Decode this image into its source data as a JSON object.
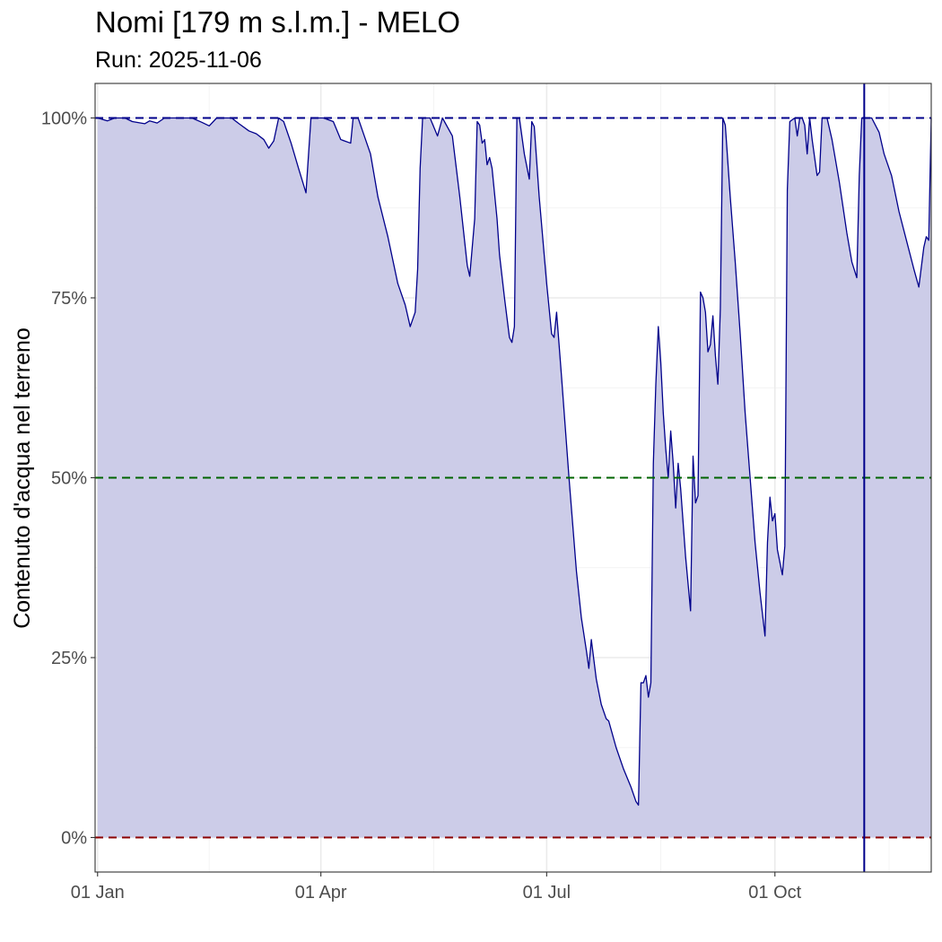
{
  "chart_data": {
    "type": "area",
    "title": "Nomi [179 m s.l.m.] - MELO",
    "subtitle": "Run: 2025-11-06",
    "xlabel": "",
    "ylabel": "Contenuto d'acqua nel terreno",
    "x_ticks": [
      {
        "date": "2025-01-01",
        "label": "01 Jan"
      },
      {
        "date": "2025-04-01",
        "label": "01 Apr"
      },
      {
        "date": "2025-07-01",
        "label": "01 Jul"
      },
      {
        "date": "2025-10-01",
        "label": "01 Oct"
      }
    ],
    "y_ticks": [
      {
        "value": 0,
        "label": "0%"
      },
      {
        "value": 25,
        "label": "25%"
      },
      {
        "value": 50,
        "label": "50%"
      },
      {
        "value": 75,
        "label": "75%"
      },
      {
        "value": 100,
        "label": "100%"
      }
    ],
    "xlim": [
      "2024-12-31",
      "2025-12-03"
    ],
    "ylim": [
      -4.8,
      104.8
    ],
    "grid": true,
    "reference_lines": [
      {
        "value": 100,
        "color": "#00008b",
        "style": "dashed"
      },
      {
        "value": 50,
        "color": "#006400",
        "style": "dashed"
      },
      {
        "value": 0,
        "color": "#8b0000",
        "style": "dashed"
      }
    ],
    "run_date": "2025-11-06",
    "colors": {
      "line": "#00008b",
      "fill": "#cccce8",
      "run_line": "#00008b",
      "grid_major": "#ebebeb",
      "grid_minor": "#f4f4f4",
      "axis_text": "#4d4d4d"
    },
    "series": [
      {
        "points": [
          [
            "2025-01-01",
            100
          ],
          [
            "2025-01-05",
            99.6
          ],
          [
            "2025-01-08",
            100
          ],
          [
            "2025-01-12",
            100
          ],
          [
            "2025-01-15",
            99.5
          ],
          [
            "2025-01-20",
            99.2
          ],
          [
            "2025-01-22",
            99.6
          ],
          [
            "2025-01-25",
            99.3
          ],
          [
            "2025-01-28",
            100
          ],
          [
            "2025-02-02",
            100
          ],
          [
            "2025-02-08",
            100
          ],
          [
            "2025-02-12",
            99.4
          ],
          [
            "2025-02-15",
            98.9
          ],
          [
            "2025-02-18",
            100
          ],
          [
            "2025-02-24",
            100
          ],
          [
            "2025-02-27",
            99.2
          ],
          [
            "2025-03-03",
            98.2
          ],
          [
            "2025-03-06",
            97.8
          ],
          [
            "2025-03-09",
            97
          ],
          [
            "2025-03-11",
            95.8
          ],
          [
            "2025-03-13",
            96.8
          ],
          [
            "2025-03-15",
            100
          ],
          [
            "2025-03-17",
            99.5
          ],
          [
            "2025-03-20",
            96.5
          ],
          [
            "2025-03-23",
            93
          ],
          [
            "2025-03-26",
            89.6
          ],
          [
            "2025-03-28",
            100
          ],
          [
            "2025-04-02",
            100
          ],
          [
            "2025-04-06",
            99.5
          ],
          [
            "2025-04-09",
            97
          ],
          [
            "2025-04-13",
            96.5
          ],
          [
            "2025-04-14",
            100
          ],
          [
            "2025-04-16",
            100
          ],
          [
            "2025-04-18",
            98
          ],
          [
            "2025-04-21",
            95
          ],
          [
            "2025-04-24",
            89
          ],
          [
            "2025-04-28",
            83.5
          ],
          [
            "2025-05-02",
            77
          ],
          [
            "2025-05-05",
            74
          ],
          [
            "2025-05-07",
            71
          ],
          [
            "2025-05-09",
            73
          ],
          [
            "2025-05-10",
            79
          ],
          [
            "2025-05-11",
            93
          ],
          [
            "2025-05-12",
            100
          ],
          [
            "2025-05-15",
            100
          ],
          [
            "2025-05-18",
            97.5
          ],
          [
            "2025-05-20",
            100
          ],
          [
            "2025-05-24",
            97.5
          ],
          [
            "2025-05-27",
            89
          ],
          [
            "2025-05-30",
            79.5
          ],
          [
            "2025-05-31",
            78
          ],
          [
            "2025-06-02",
            86
          ],
          [
            "2025-06-03",
            99.5
          ],
          [
            "2025-06-04",
            99
          ],
          [
            "2025-06-05",
            96.5
          ],
          [
            "2025-06-06",
            97
          ],
          [
            "2025-06-07",
            93.5
          ],
          [
            "2025-06-08",
            94.5
          ],
          [
            "2025-06-09",
            93
          ],
          [
            "2025-06-11",
            86
          ],
          [
            "2025-06-12",
            81
          ],
          [
            "2025-06-14",
            75
          ],
          [
            "2025-06-16",
            69.5
          ],
          [
            "2025-06-17",
            68.8
          ],
          [
            "2025-06-18",
            71
          ],
          [
            "2025-06-19",
            100
          ],
          [
            "2025-06-20",
            100
          ],
          [
            "2025-06-22",
            95
          ],
          [
            "2025-06-24",
            91.5
          ],
          [
            "2025-06-25",
            99.5
          ],
          [
            "2025-06-26",
            98.8
          ],
          [
            "2025-06-28",
            89
          ],
          [
            "2025-07-01",
            77
          ],
          [
            "2025-07-03",
            70
          ],
          [
            "2025-07-04",
            69.5
          ],
          [
            "2025-07-05",
            73
          ],
          [
            "2025-07-07",
            64
          ],
          [
            "2025-07-10",
            50
          ],
          [
            "2025-07-13",
            37
          ],
          [
            "2025-07-15",
            30.5
          ],
          [
            "2025-07-17",
            26
          ],
          [
            "2025-07-18",
            23.5
          ],
          [
            "2025-07-19",
            27.5
          ],
          [
            "2025-07-21",
            22
          ],
          [
            "2025-07-23",
            18.5
          ],
          [
            "2025-07-25",
            16.5
          ],
          [
            "2025-07-26",
            16.2
          ],
          [
            "2025-07-29",
            12.5
          ],
          [
            "2025-08-01",
            9.5
          ],
          [
            "2025-08-04",
            7
          ],
          [
            "2025-08-06",
            5
          ],
          [
            "2025-08-07",
            4.5
          ],
          [
            "2025-08-08",
            21.5
          ],
          [
            "2025-08-09",
            21.5
          ],
          [
            "2025-08-10",
            22.5
          ],
          [
            "2025-08-11",
            19.5
          ],
          [
            "2025-08-12",
            21.5
          ],
          [
            "2025-08-13",
            52
          ],
          [
            "2025-08-14",
            63
          ],
          [
            "2025-08-15",
            71
          ],
          [
            "2025-08-16",
            66
          ],
          [
            "2025-08-17",
            59
          ],
          [
            "2025-08-18",
            54
          ],
          [
            "2025-08-19",
            50
          ],
          [
            "2025-08-20",
            56.5
          ],
          [
            "2025-08-21",
            52
          ],
          [
            "2025-08-22",
            45.8
          ],
          [
            "2025-08-23",
            52
          ],
          [
            "2025-08-24",
            48.5
          ],
          [
            "2025-08-26",
            39
          ],
          [
            "2025-08-28",
            31.5
          ],
          [
            "2025-08-29",
            53
          ],
          [
            "2025-08-30",
            46.5
          ],
          [
            "2025-08-31",
            47.5
          ],
          [
            "2025-09-01",
            75.8
          ],
          [
            "2025-09-02",
            75
          ],
          [
            "2025-09-03",
            73
          ],
          [
            "2025-09-04",
            67.5
          ],
          [
            "2025-09-05",
            68.5
          ],
          [
            "2025-09-06",
            72.5
          ],
          [
            "2025-09-07",
            67
          ],
          [
            "2025-09-08",
            63
          ],
          [
            "2025-09-09",
            73.5
          ],
          [
            "2025-09-10",
            100
          ],
          [
            "2025-09-11",
            99
          ],
          [
            "2025-09-13",
            89
          ],
          [
            "2025-09-15",
            80
          ],
          [
            "2025-09-17",
            70
          ],
          [
            "2025-09-19",
            59
          ],
          [
            "2025-09-21",
            50
          ],
          [
            "2025-09-23",
            41
          ],
          [
            "2025-09-25",
            34
          ],
          [
            "2025-09-27",
            28
          ],
          [
            "2025-09-28",
            41
          ],
          [
            "2025-09-29",
            47.3
          ],
          [
            "2025-09-30",
            44
          ],
          [
            "2025-10-01",
            45
          ],
          [
            "2025-10-02",
            40
          ],
          [
            "2025-10-04",
            36.5
          ],
          [
            "2025-10-05",
            40.5
          ],
          [
            "2025-10-06",
            90
          ],
          [
            "2025-10-07",
            99.5
          ],
          [
            "2025-10-09",
            100
          ],
          [
            "2025-10-10",
            97.5
          ],
          [
            "2025-10-11",
            100
          ],
          [
            "2025-10-12",
            100
          ],
          [
            "2025-10-13",
            99
          ],
          [
            "2025-10-14",
            95
          ],
          [
            "2025-10-15",
            100
          ],
          [
            "2025-10-16",
            97
          ],
          [
            "2025-10-18",
            92
          ],
          [
            "2025-10-19",
            92.5
          ],
          [
            "2025-10-20",
            100
          ],
          [
            "2025-10-22",
            100
          ],
          [
            "2025-10-24",
            97
          ],
          [
            "2025-10-27",
            91
          ],
          [
            "2025-10-30",
            84
          ],
          [
            "2025-11-01",
            80
          ],
          [
            "2025-11-03",
            77.8
          ],
          [
            "2025-11-04",
            92
          ],
          [
            "2025-11-05",
            100
          ],
          [
            "2025-11-09",
            100
          ],
          [
            "2025-11-12",
            98
          ],
          [
            "2025-11-14",
            95
          ],
          [
            "2025-11-17",
            92
          ],
          [
            "2025-11-20",
            87
          ],
          [
            "2025-11-23",
            83
          ],
          [
            "2025-11-26",
            79
          ],
          [
            "2025-11-28",
            76.5
          ],
          [
            "2025-11-30",
            82
          ],
          [
            "2025-12-01",
            83.5
          ],
          [
            "2025-12-02",
            83
          ],
          [
            "2025-12-04",
            100
          ],
          [
            "2025-12-06",
            100
          ]
        ]
      }
    ]
  }
}
